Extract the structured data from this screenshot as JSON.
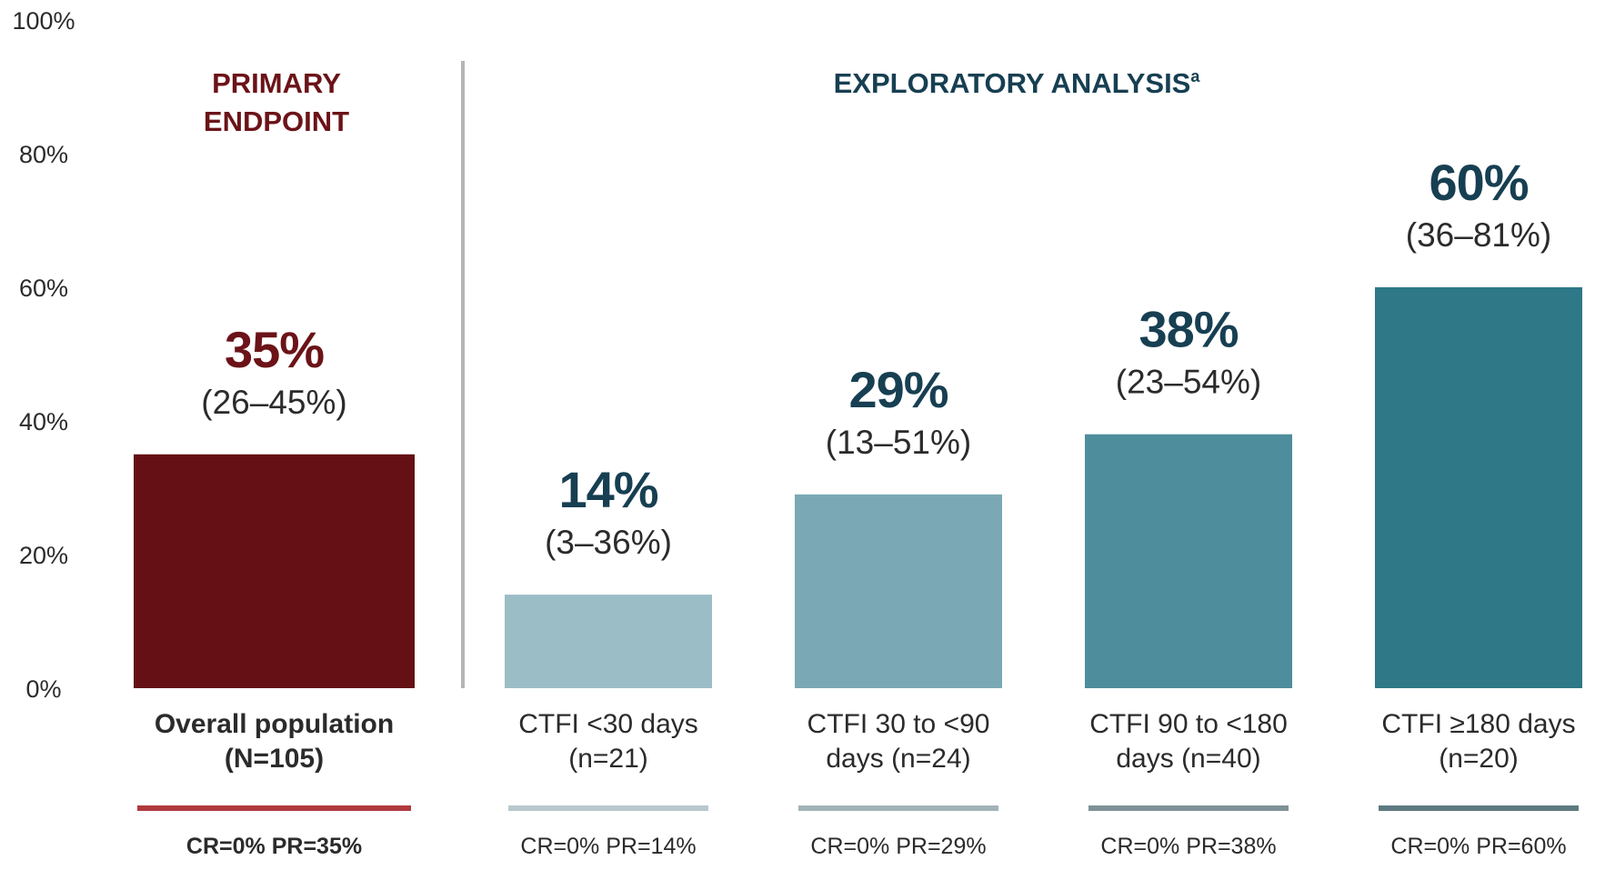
{
  "chart_data": {
    "type": "bar",
    "ylim": [
      0,
      100
    ],
    "y_ticks": [
      "0%",
      "20%",
      "40%",
      "60%",
      "80%",
      "100%"
    ],
    "y_tick_values": [
      0,
      20,
      40,
      60,
      80,
      100
    ],
    "grid": false,
    "sections": [
      {
        "id": "primary",
        "lines": [
          "PRIMARY",
          "ENDPOINT"
        ],
        "color": "#6b1318"
      },
      {
        "id": "exploratory",
        "title": "EXPLORATORY ANALYSIS",
        "superscript": "a",
        "color": "#173f52"
      }
    ],
    "bars": [
      {
        "section": "primary",
        "value": 35,
        "value_label": "35%",
        "ci_label": "(26–45%)",
        "category_lines": [
          "Overall population",
          "(N=105)"
        ],
        "response": "CR=0%  PR=35%",
        "color": "#651014",
        "underline_color": "#b03a3e",
        "bold": true
      },
      {
        "section": "exploratory",
        "value": 14,
        "value_label": "14%",
        "ci_label": "(3–36%)",
        "category_lines": [
          "CTFI <30 days",
          "(n=21)"
        ],
        "response": "CR=0%  PR=14%",
        "color": "#9bbdc6",
        "underline_color": "#b8c8cc",
        "bold": false
      },
      {
        "section": "exploratory",
        "value": 29,
        "value_label": "29%",
        "ci_label": "(13–51%)",
        "category_lines": [
          "CTFI 30 to <90",
          "days (n=24)"
        ],
        "response": "CR=0%  PR=29%",
        "color": "#7aa9b5",
        "underline_color": "#a2b3b8",
        "bold": false
      },
      {
        "section": "exploratory",
        "value": 38,
        "value_label": "38%",
        "ci_label": "(23–54%)",
        "category_lines": [
          "CTFI 90 to <180",
          "days (n=40)"
        ],
        "response": "CR=0%  PR=38%",
        "color": "#4e8d9c",
        "underline_color": "#7f9298",
        "bold": false
      },
      {
        "section": "exploratory",
        "value": 60,
        "value_label": "60%",
        "ci_label": "(36–81%)",
        "category_lines": [
          "CTFI ≥180 days",
          "(n=20)"
        ],
        "response": "CR=0%  PR=60%",
        "color": "#2e7887",
        "underline_color": "#5e7a80",
        "bold": false
      }
    ],
    "pct_label_colors": {
      "primary": "#6b1318",
      "exploratory": "#173f52"
    }
  }
}
